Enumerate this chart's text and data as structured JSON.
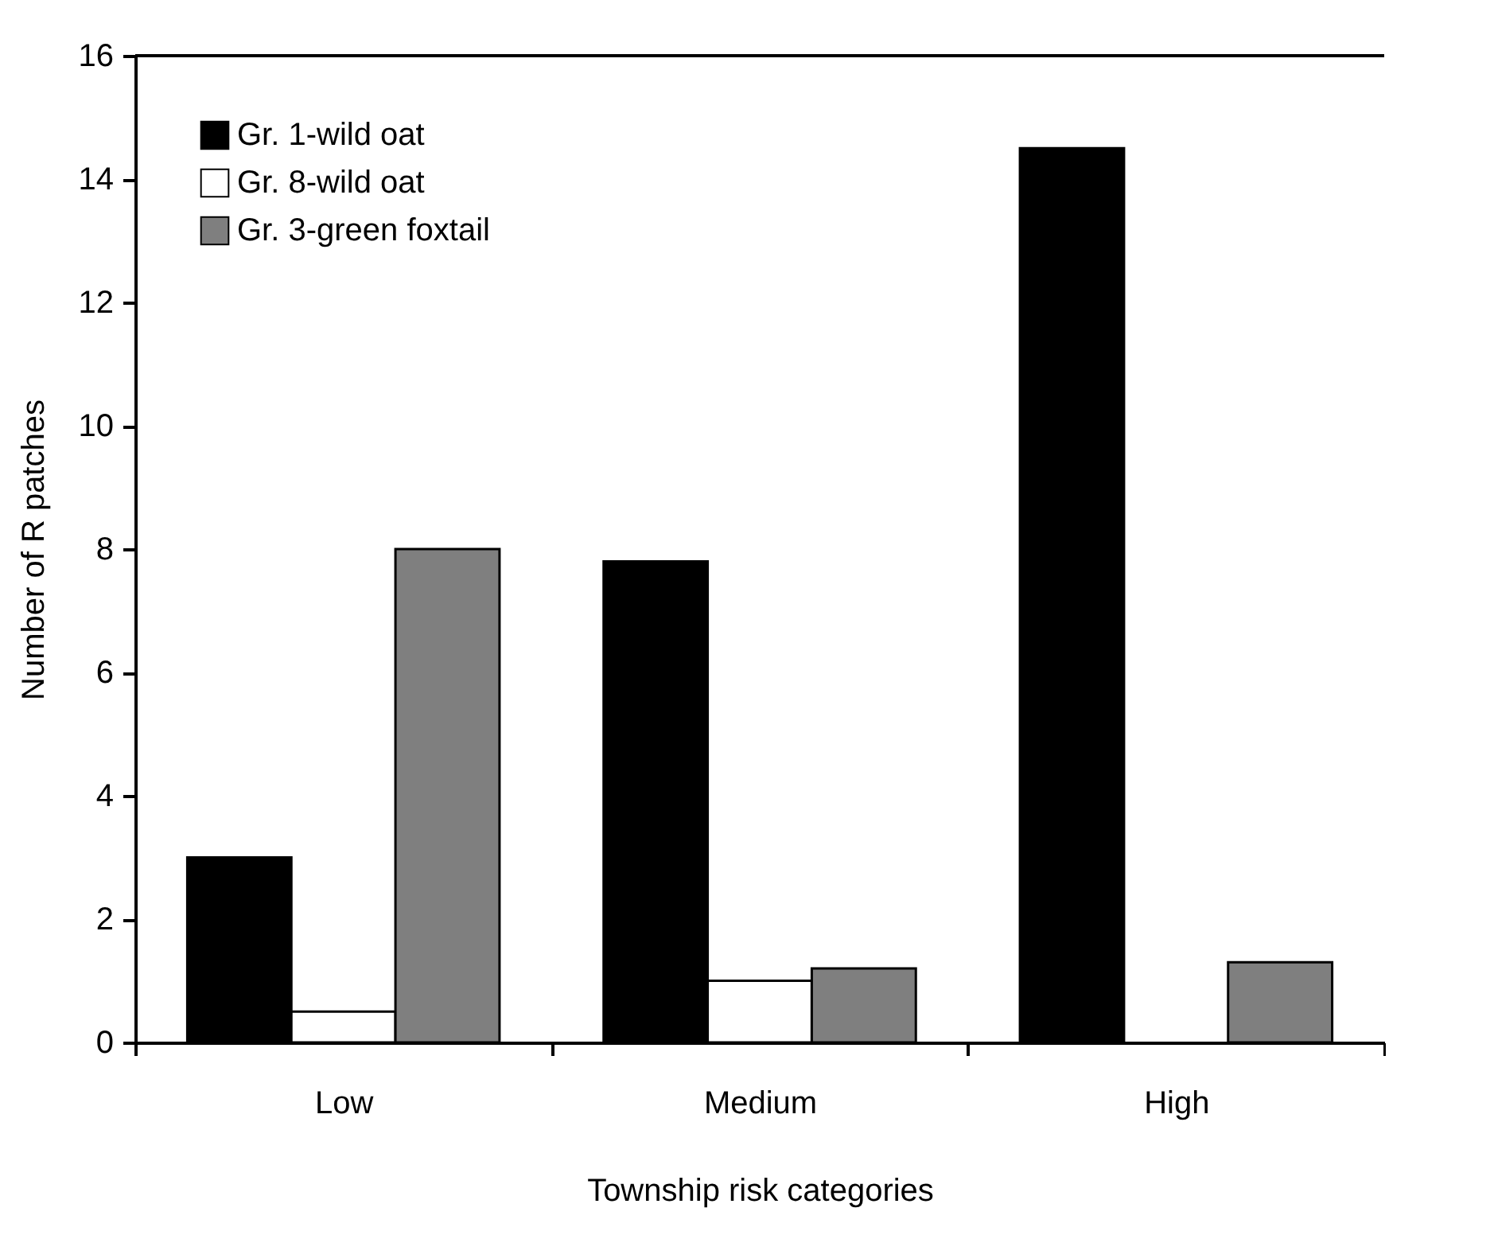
{
  "chart_data": {
    "type": "bar",
    "xlabel": "Township risk categories",
    "ylabel": "Number of R patches",
    "categories": [
      "Low",
      "Medium",
      "High"
    ],
    "series": [
      {
        "name": "Gr. 1-wild oat",
        "color": "#000000",
        "values": [
          3,
          7.8,
          14.5
        ]
      },
      {
        "name": "Gr. 8-wild oat",
        "color": "#ffffff",
        "values": [
          0.5,
          1,
          null
        ]
      },
      {
        "name": "Gr. 3-green foxtail",
        "color": "#7f7f7f",
        "values": [
          8,
          1.2,
          1.3
        ]
      }
    ],
    "ylim": [
      0,
      16
    ],
    "yticks": [
      0,
      2,
      4,
      6,
      8,
      10,
      12,
      14,
      16
    ],
    "grid": false,
    "legend": "top left"
  }
}
